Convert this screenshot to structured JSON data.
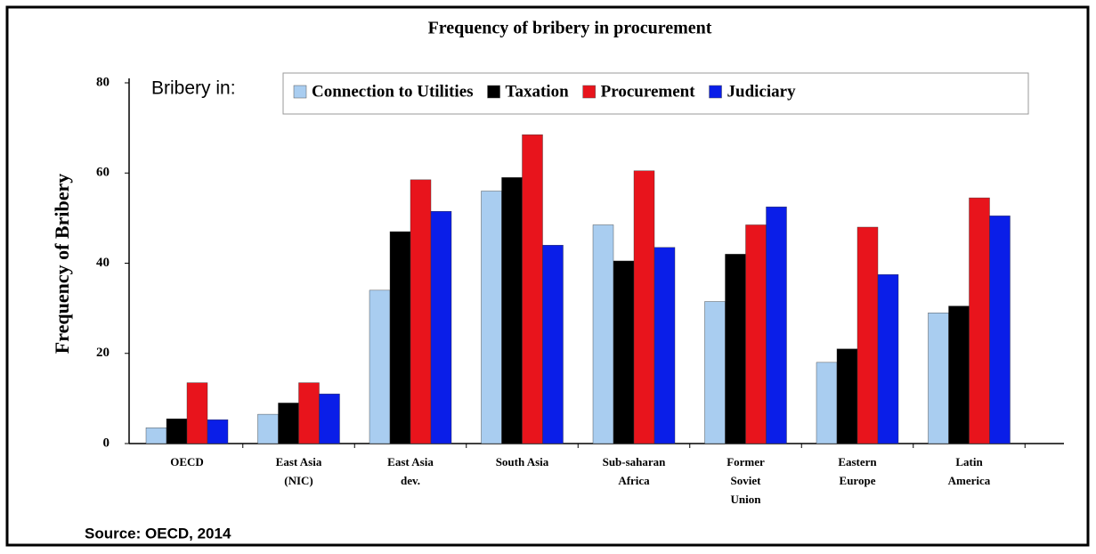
{
  "chart_data": {
    "type": "bar",
    "title": "Frequency of bribery in procurement",
    "y_label": "Frequency of Bribery",
    "legend_title": "Bribery in:",
    "source": "Source: OECD, 2014",
    "categories": [
      "OECD",
      "East Asia\n(NIC)",
      "East Asia\ndev.",
      "South Asia",
      "Sub-saharan\nAfrica",
      "Former\nSoviet\nUnion",
      "Eastern\nEurope",
      "Latin\nAmerica"
    ],
    "series": [
      {
        "name": "Connection to Utilities",
        "color": "#a9cdf0",
        "values": [
          3.5,
          6.5,
          34,
          56,
          48.5,
          31.5,
          18,
          29
        ]
      },
      {
        "name": "Taxation",
        "color": "#000000",
        "values": [
          5.5,
          9,
          47,
          59,
          40.5,
          42,
          21,
          30.5
        ]
      },
      {
        "name": "Procurement",
        "color": "#e8141c",
        "values": [
          13.5,
          13.5,
          58.5,
          68.5,
          60.5,
          48.5,
          48,
          54.5
        ]
      },
      {
        "name": "Judiciary",
        "color": "#0a1ee8",
        "values": [
          5.3,
          11,
          51.5,
          44,
          43.5,
          52.5,
          37.5,
          50.5
        ]
      }
    ],
    "ylim": [
      0,
      80
    ],
    "yticks": [
      0,
      20,
      40,
      60,
      80
    ],
    "grid": false
  }
}
